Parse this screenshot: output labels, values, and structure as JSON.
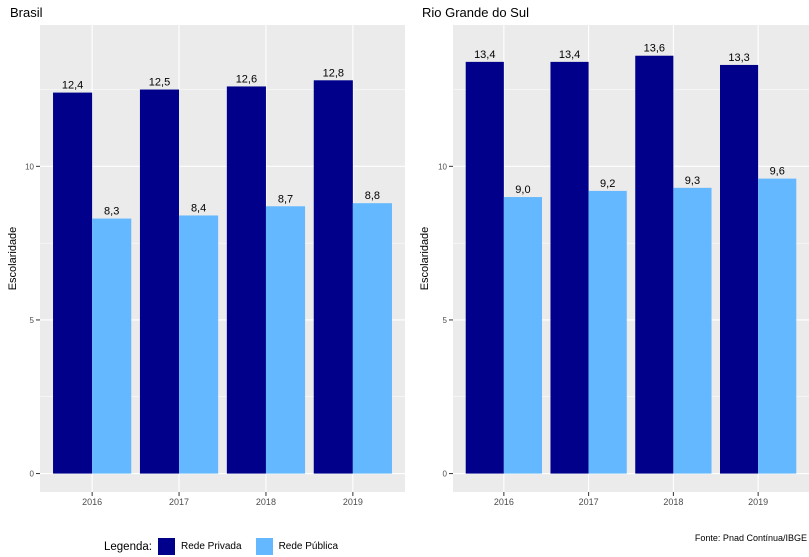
{
  "chart_data": [
    {
      "type": "bar",
      "title": "Brasil",
      "ylabel": "Escolaridade",
      "xlabel": "",
      "categories": [
        "2016",
        "2017",
        "2018",
        "2019"
      ],
      "series": [
        {
          "name": "Rede Privada",
          "values": [
            12.4,
            12.5,
            12.6,
            12.8
          ],
          "labels": [
            "12,4",
            "12,5",
            "12,6",
            "12,8"
          ]
        },
        {
          "name": "Rede Pública",
          "values": [
            8.3,
            8.4,
            8.7,
            8.8
          ],
          "labels": [
            "8,3",
            "8,4",
            "8,7",
            "8,8"
          ]
        }
      ],
      "ylim": [
        -0.6,
        14.6
      ],
      "yticks": [
        0,
        5,
        10
      ],
      "grid": true
    },
    {
      "type": "bar",
      "title": "Rio Grande do Sul",
      "ylabel": "Escolaridade",
      "xlabel": "",
      "categories": [
        "2016",
        "2017",
        "2018",
        "2019"
      ],
      "series": [
        {
          "name": "Rede Privada",
          "values": [
            13.4,
            13.4,
            13.6,
            13.3
          ],
          "labels": [
            "13,4",
            "13,4",
            "13,6",
            "13,3"
          ]
        },
        {
          "name": "Rede Pública",
          "values": [
            9.0,
            9.2,
            9.3,
            9.6
          ],
          "labels": [
            "9,0",
            "9,2",
            "9,3",
            "9,6"
          ]
        }
      ],
      "ylim": [
        -0.6,
        14.6
      ],
      "yticks": [
        0,
        5,
        10
      ],
      "grid": true
    }
  ],
  "legend": {
    "title": "Legenda:",
    "items": [
      {
        "label": "Rede Privada",
        "color": "#00008B"
      },
      {
        "label": "Rede Pública",
        "color": "#63B8FF"
      }
    ]
  },
  "colors": {
    "panel_bg": "#EBEBEB",
    "grid": "#FFFFFF"
  },
  "source": "Fonte: Pnad Contínua/IBGE"
}
